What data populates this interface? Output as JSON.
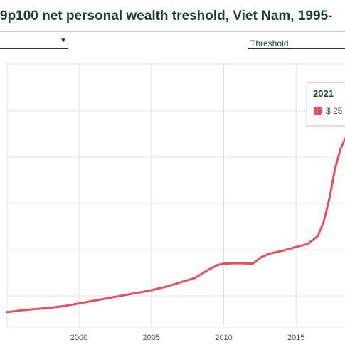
{
  "title": "9p100 net personal wealth treshold, Viet Nam, 1995-",
  "controls": {
    "threshold_label": "Threshold"
  },
  "tooltip": {
    "year": "2021",
    "value": "$ 25",
    "color": "#e84e5b"
  },
  "colors": {
    "line": "#e84e5b",
    "grid": "#e2e2e2",
    "text": "#1f3b36"
  },
  "chart_data": {
    "type": "line",
    "title": "9p100 net personal wealth treshold, Viet Nam, 1995-",
    "xlim": [
      1995,
      2018.5
    ],
    "x_ticks": [
      "2000",
      "2005",
      "2010",
      "2015"
    ],
    "grid": true,
    "series": [
      {
        "color": "#e84e5b",
        "points": [
          [
            1995,
            0.5
          ],
          [
            1996,
            0.7
          ],
          [
            1997,
            0.85
          ],
          [
            1998,
            1.0
          ],
          [
            1999,
            1.2
          ],
          [
            2000,
            1.5
          ],
          [
            2001,
            1.8
          ],
          [
            2002,
            2.1
          ],
          [
            2003,
            2.4
          ],
          [
            2004,
            2.7
          ],
          [
            2005,
            3.0
          ],
          [
            2006,
            3.4
          ],
          [
            2007,
            3.9
          ],
          [
            2008,
            4.4
          ],
          [
            2009,
            5.4
          ],
          [
            2009.6,
            5.9
          ],
          [
            2010,
            6.05
          ],
          [
            2011,
            6.1
          ],
          [
            2012,
            6.05
          ],
          [
            2012.6,
            6.8
          ],
          [
            2013.2,
            7.2
          ],
          [
            2014,
            7.5
          ],
          [
            2015,
            7.95
          ],
          [
            2015.8,
            8.3
          ],
          [
            2016.5,
            9.2
          ],
          [
            2016.9,
            10.8
          ],
          [
            2017.3,
            13.5
          ],
          [
            2017.7,
            17.0
          ],
          [
            2018.1,
            19.3
          ],
          [
            2018.5,
            20.7
          ]
        ]
      }
    ]
  }
}
